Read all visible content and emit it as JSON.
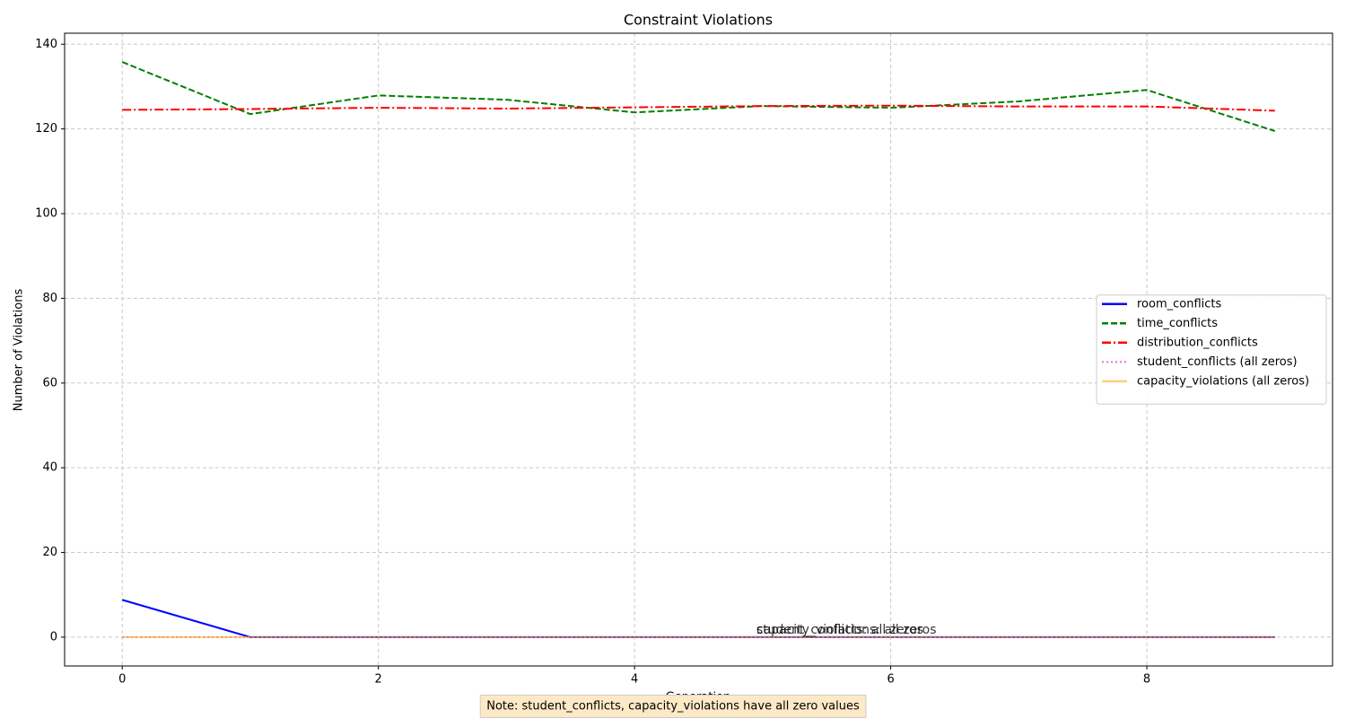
{
  "chart_data": {
    "type": "line",
    "title": "Constraint Violations",
    "x_label": "Generation",
    "y_label": "Number of Violations",
    "x": [
      0,
      1,
      2,
      3,
      4,
      5,
      6,
      7,
      8,
      9
    ],
    "series": [
      {
        "name": "room_conflicts",
        "color": "#0000ff",
        "style": "solid",
        "opacity": 1,
        "values": [
          8.8,
          0,
          0,
          0,
          0,
          0,
          0,
          0,
          0,
          0
        ]
      },
      {
        "name": "time_conflicts",
        "color": "#008000",
        "style": "dashed",
        "opacity": 1,
        "values": [
          135.8,
          123.5,
          127.9,
          126.9,
          123.9,
          125.4,
          125,
          126.5,
          129.2,
          119.5
        ]
      },
      {
        "name": "distribution_conflicts",
        "color": "#ff0000",
        "style": "dashdot",
        "opacity": 1,
        "values": [
          124.5,
          124.7,
          125,
          124.8,
          125.1,
          125.4,
          125.5,
          125.3,
          125.3,
          124.3
        ]
      },
      {
        "name": "student_conflicts (all zeros)",
        "color": "#da70d6",
        "style": "dotted",
        "opacity": 0.8,
        "values": [
          0,
          0,
          0,
          0,
          0,
          0,
          0,
          0,
          0,
          0
        ]
      },
      {
        "name": "capacity_violations (all zeros)",
        "color": "#ffa500",
        "style": "solid",
        "opacity": 0.5,
        "values": [
          0,
          0,
          0,
          0,
          0,
          0,
          0,
          0,
          0,
          0
        ]
      }
    ],
    "annotations": [
      {
        "text": "student_conflicts: all zeros",
        "x": 5,
        "y": 0,
        "color": "#800080"
      },
      {
        "text": "capacity_violations: all zeros",
        "x": 5,
        "y": 0,
        "color": "#ffa500"
      }
    ],
    "note": "Note: student_conflicts, capacity_violations have all zero values",
    "xlim": [
      -0.45,
      9.45
    ],
    "ylim": [
      -6.8,
      142.6
    ],
    "xticks": [
      0,
      2,
      4,
      6,
      8
    ],
    "yticks": [
      0,
      20,
      40,
      60,
      80,
      100,
      120,
      140
    ],
    "grid": true,
    "legend": "center right"
  }
}
